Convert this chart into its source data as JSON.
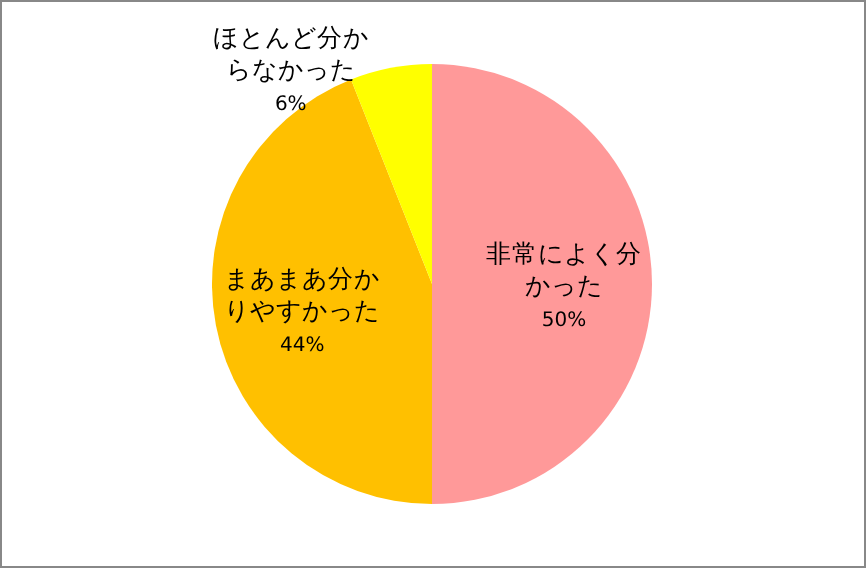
{
  "chart_data": {
    "type": "pie",
    "categories": [
      "非常によく分かった",
      "まあまあ分かりやすかった",
      "ほとんど分からなかった"
    ],
    "values": [
      50,
      44,
      6
    ],
    "value_labels": [
      "50%",
      "44%",
      "6%"
    ],
    "colors": [
      "#ff9999",
      "#ffc000",
      "#ffff00"
    ]
  }
}
